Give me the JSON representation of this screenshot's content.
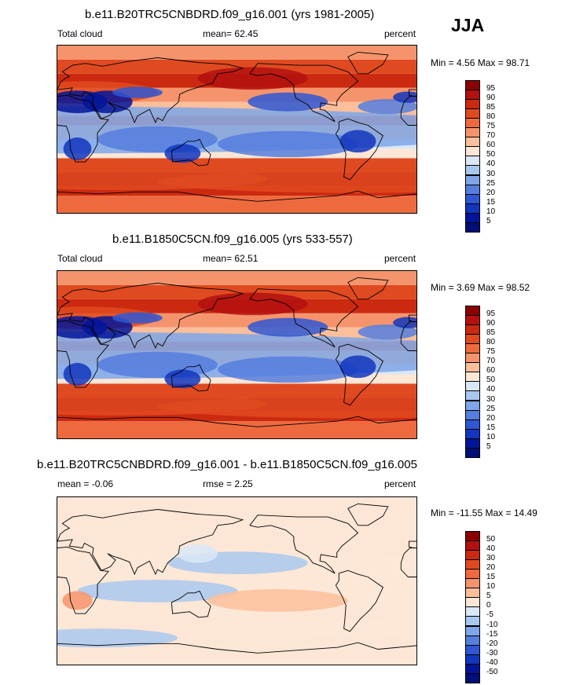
{
  "season": "JJA",
  "panels": [
    {
      "title": "b.e11.B20TRC5CNBDRD.f09_g16.001 (yrs 1981-2005)",
      "left_label": "Total cloud",
      "center_label": "mean=  62.45",
      "right_label": "percent",
      "minmax": "Min =   4.56 Max =  98.71"
    },
    {
      "title": "b.e11.B1850C5CN.f09_g16.005 (yrs 533-557)",
      "left_label": "Total cloud",
      "center_label": "mean=  62.51",
      "right_label": "percent",
      "minmax": "Min =   3.69 Max =  98.52"
    },
    {
      "title": "b.e11.B20TRC5CNBDRD.f09_g16.001 - b.e11.B1850C5CN.f09_g16.005",
      "left_label": "mean =  -0.06",
      "center_label": "rmse =   2.25",
      "right_label": "percent",
      "minmax": "Min = -11.55 Max =  14.49"
    }
  ],
  "chart_data": [
    {
      "type": "heatmap",
      "title": "b.e11.B20TRC5CNBDRD.f09_g16.001 (yrs 1981-2005)",
      "variable": "Total cloud",
      "units": "percent",
      "season": "JJA",
      "mean": 62.45,
      "min": 4.56,
      "max": 98.71,
      "colorbar_levels": [
        95,
        90,
        85,
        80,
        75,
        70,
        60,
        50,
        40,
        30,
        25,
        20,
        15,
        10,
        5
      ],
      "colorbar_colors": [
        "#8b0000",
        "#b31010",
        "#cc2a10",
        "#e04a20",
        "#ee6a3e",
        "#f5946c",
        "#fbbf9c",
        "#fde6d6",
        "#d9e7f7",
        "#a9c8ef",
        "#7ea6e8",
        "#557ede",
        "#2f57d3",
        "#1236bd",
        "#02159a",
        "#000e78"
      ]
    },
    {
      "type": "heatmap",
      "title": "b.e11.B1850C5CN.f09_g16.005 (yrs 533-557)",
      "variable": "Total cloud",
      "units": "percent",
      "season": "JJA",
      "mean": 62.51,
      "min": 3.69,
      "max": 98.52,
      "colorbar_levels": [
        95,
        90,
        85,
        80,
        75,
        70,
        60,
        50,
        40,
        30,
        25,
        20,
        15,
        10,
        5
      ],
      "colorbar_colors": [
        "#8b0000",
        "#b31010",
        "#cc2a10",
        "#e04a20",
        "#ee6a3e",
        "#f5946c",
        "#fbbf9c",
        "#fde6d6",
        "#d9e7f7",
        "#a9c8ef",
        "#7ea6e8",
        "#557ede",
        "#2f57d3",
        "#1236bd",
        "#02159a",
        "#000e78"
      ]
    },
    {
      "type": "heatmap",
      "title": "b.e11.B20TRC5CNBDRD.f09_g16.001 - b.e11.B1850C5CN.f09_g16.005",
      "units": "percent",
      "mean": -0.06,
      "rmse": 2.25,
      "min": -11.55,
      "max": 14.49,
      "colorbar_levels": [
        50,
        40,
        30,
        20,
        15,
        10,
        5,
        0,
        -5,
        -10,
        -15,
        -20,
        -30,
        -40,
        -50
      ],
      "colorbar_colors": [
        "#8b0000",
        "#b31010",
        "#cc2a10",
        "#e04a20",
        "#ee6a3e",
        "#f5946c",
        "#fbbf9c",
        "#fde6d6",
        "#d9e7f7",
        "#a9c8ef",
        "#7ea6e8",
        "#557ede",
        "#2f57d3",
        "#1236bd",
        "#02159a",
        "#000e78"
      ]
    }
  ]
}
